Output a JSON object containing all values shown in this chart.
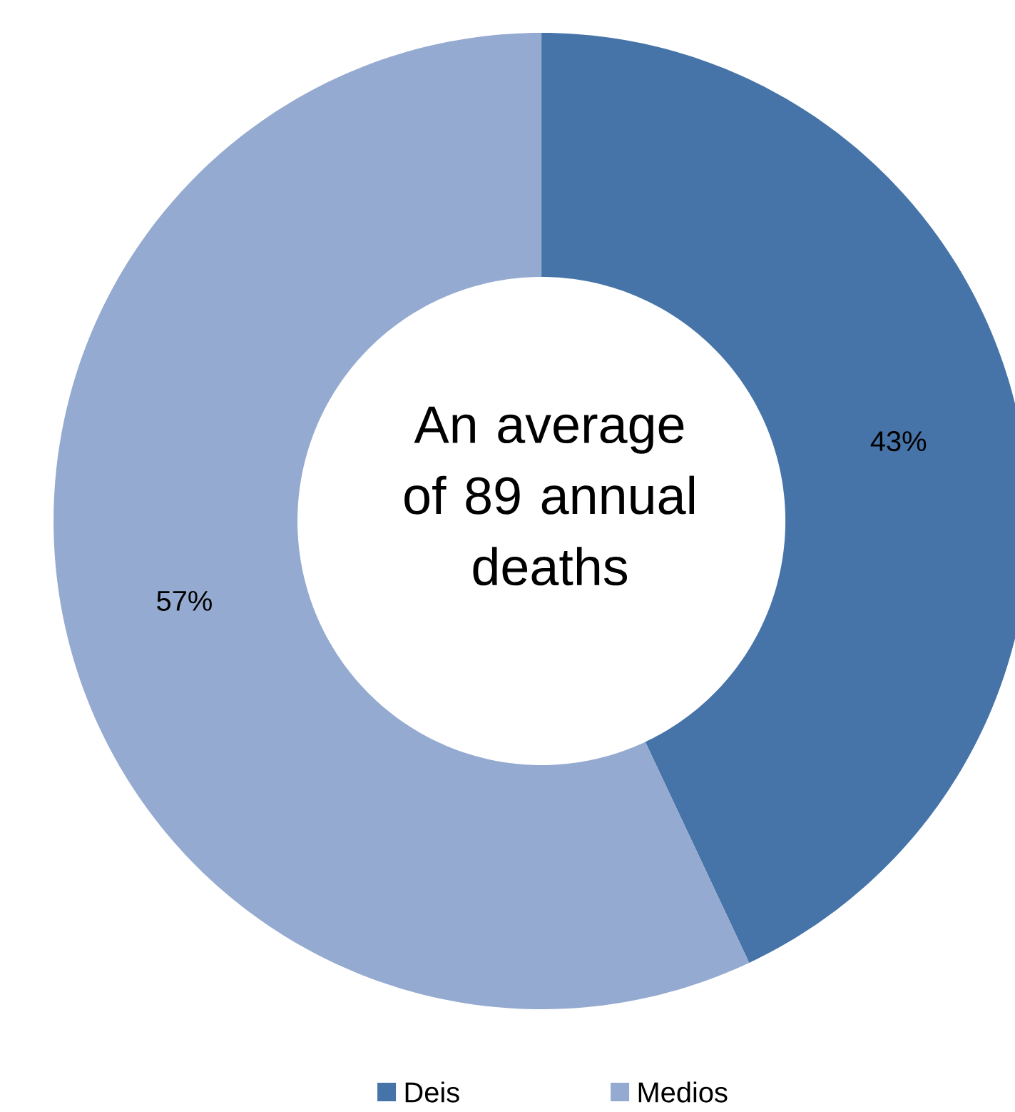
{
  "chart_data": {
    "type": "donut",
    "categories": [
      "Deis",
      "Medios"
    ],
    "values": [
      43,
      57
    ],
    "value_labels": [
      "43%",
      "57%"
    ],
    "colors": [
      "#4674a8",
      "#95aad0"
    ],
    "legend": "bottom",
    "annotations": [
      "An average of 89 annual deaths"
    ]
  }
}
